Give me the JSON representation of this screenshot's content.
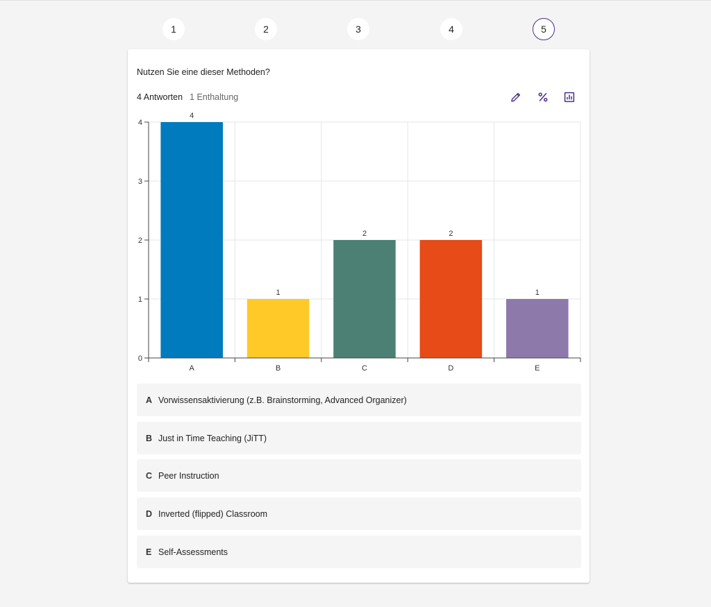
{
  "stepper": {
    "steps": [
      "1",
      "2",
      "3",
      "4",
      "5"
    ],
    "active": "5"
  },
  "question": {
    "text": "Nutzen Sie eine dieser Methoden?",
    "answers_count": "4",
    "answers_label": "Antworten",
    "abstention": "1 Enthaltung"
  },
  "tools": {
    "edit_icon": "pencil-icon",
    "percent_icon": "percent-icon",
    "chart_icon": "bar-chart-icon",
    "accent": "#4a2d8c"
  },
  "chart_data": {
    "type": "bar",
    "categories": [
      "A",
      "B",
      "C",
      "D",
      "E"
    ],
    "values": [
      4,
      1,
      2,
      2,
      1
    ],
    "value_labels": [
      "4",
      "1",
      "2",
      "2",
      "1"
    ],
    "colors": [
      "#007bbd",
      "#ffc927",
      "#4c8075",
      "#e64b18",
      "#8d7aab"
    ],
    "ylim": [
      0,
      4
    ],
    "yticks": [
      "0",
      "1",
      "2",
      "3",
      "4"
    ],
    "grid": true
  },
  "legend": [
    {
      "letter": "A",
      "text": "Vorwissensaktivierung (z.B. Brainstorming, Advanced Organizer)"
    },
    {
      "letter": "B",
      "text": "Just in Time Teaching (JiTT)"
    },
    {
      "letter": "C",
      "text": "Peer Instruction"
    },
    {
      "letter": "D",
      "text": "Inverted (flipped) Classroom"
    },
    {
      "letter": "E",
      "text": "Self-Assessments"
    }
  ]
}
